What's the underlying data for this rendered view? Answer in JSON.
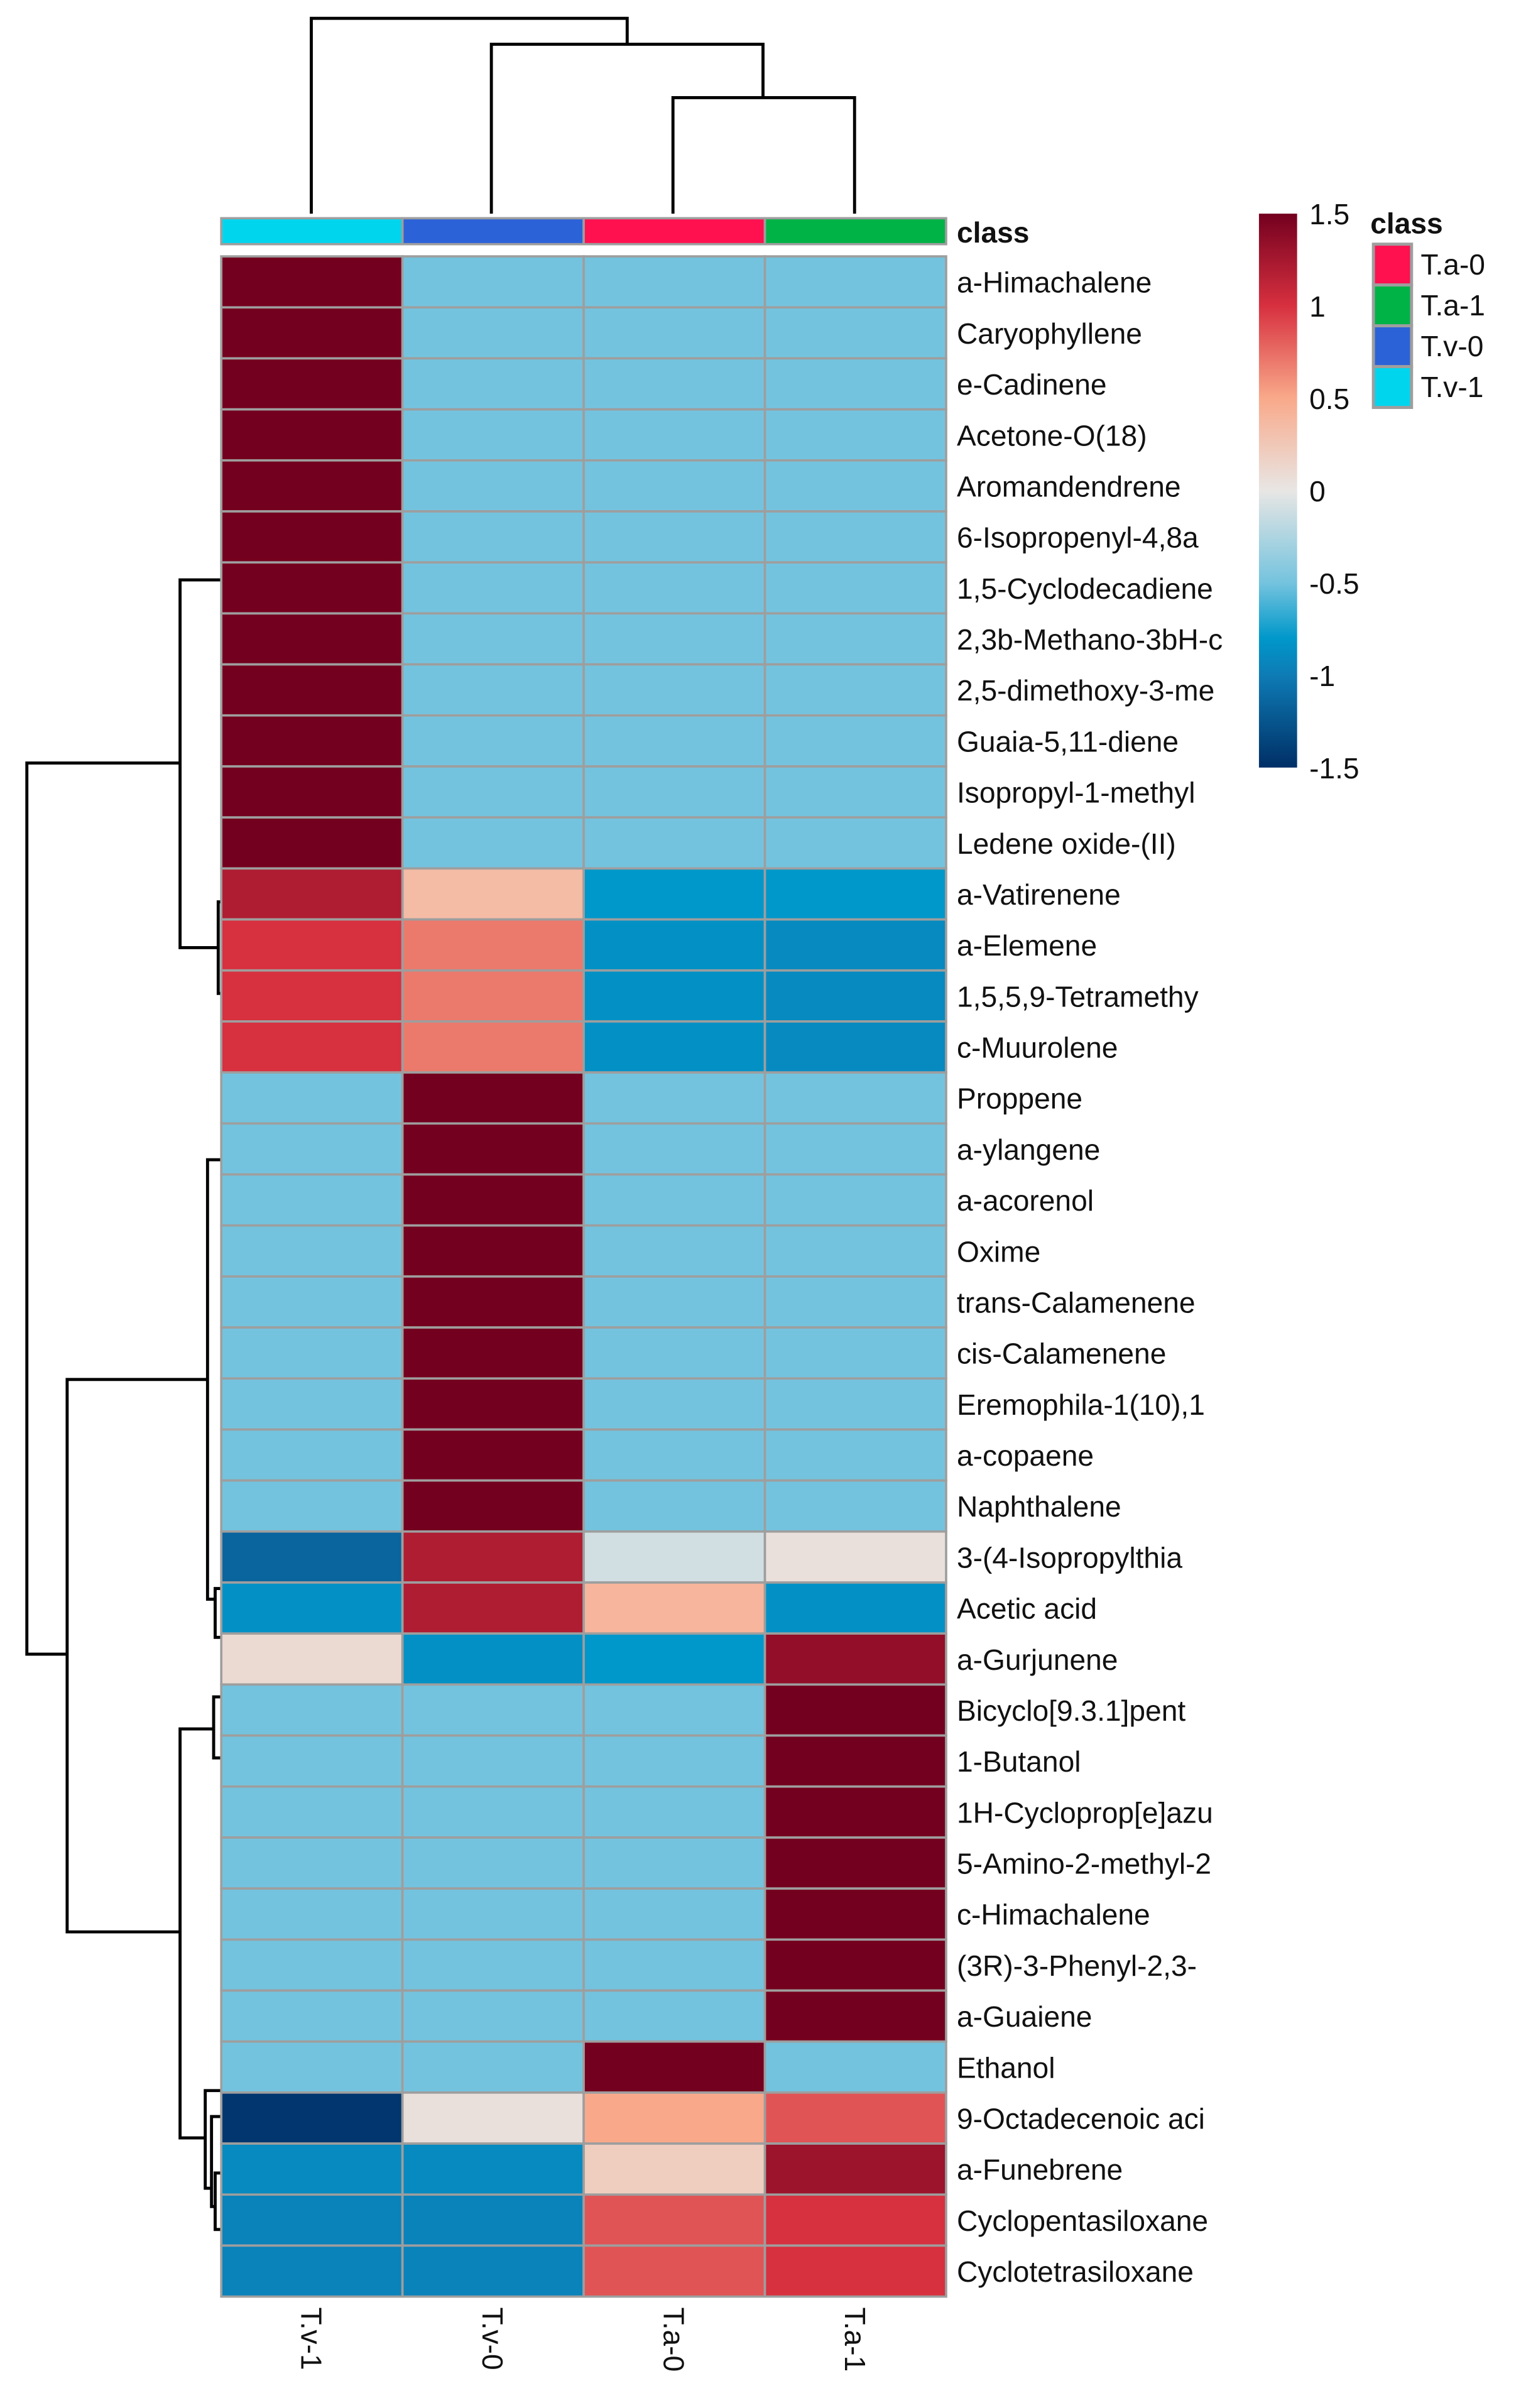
{
  "chart_data": {
    "type": "heatmap",
    "title": "",
    "columns": [
      "T.v-1",
      "T.v-0",
      "T.a-0",
      "T.a-1"
    ],
    "column_classes": [
      "T.v-1",
      "T.v-0",
      "T.a-0",
      "T.a-1"
    ],
    "class_annotation_label": "class",
    "rows": [
      "a-Himachalene",
      "Caryophyllene",
      "e-Cadinene",
      "Acetone-O(18)",
      "Aromandendrene",
      "6-Isopropenyl-4,8a",
      "1,5-Cyclodecadiene",
      "2,3b-Methano-3bH-c",
      "2,5-dimethoxy-3-me",
      "Guaia-5,11-diene",
      "Isopropyl-1-methyl",
      "Ledene oxide-(II)",
      "a-Vatirenene",
      "a-Elemene",
      "1,5,5,9-Tetramethy",
      "c-Muurolene",
      "Proppene",
      "a-ylangene",
      "a-acorenol",
      "Oxime",
      "trans-Calamenene",
      "cis-Calamenene",
      "Eremophila-1(10),1",
      "a-copaene",
      "Naphthalene",
      "3-(4-Isopropylthia",
      "Acetic acid",
      "a-Gurjunene",
      "Bicyclo[9.3.1]pent",
      "1-Butanol",
      "1H-Cycloprop[e]azu",
      "5-Amino-2-methyl-2",
      "c-Himachalene",
      "(3R)-3-Phenyl-2,3-",
      "a-Guaiene",
      "Ethanol",
      "9-Octadecenoic aci",
      "a-Funebrene",
      "Cyclopentasiloxane",
      "Cyclotetrasiloxane"
    ],
    "values": [
      [
        1.5,
        -0.5,
        -0.5,
        -0.5
      ],
      [
        1.5,
        -0.5,
        -0.5,
        -0.5
      ],
      [
        1.5,
        -0.5,
        -0.5,
        -0.5
      ],
      [
        1.5,
        -0.5,
        -0.5,
        -0.5
      ],
      [
        1.5,
        -0.5,
        -0.5,
        -0.5
      ],
      [
        1.5,
        -0.5,
        -0.5,
        -0.5
      ],
      [
        1.5,
        -0.5,
        -0.5,
        -0.5
      ],
      [
        1.5,
        -0.5,
        -0.5,
        -0.5
      ],
      [
        1.5,
        -0.5,
        -0.5,
        -0.5
      ],
      [
        1.5,
        -0.5,
        -0.5,
        -0.5
      ],
      [
        1.5,
        -0.5,
        -0.5,
        -0.5
      ],
      [
        1.5,
        -0.5,
        -0.5,
        -0.5
      ],
      [
        1.2,
        0.35,
        -0.8,
        -0.8
      ],
      [
        1.0,
        0.7,
        -0.85,
        -0.9
      ],
      [
        1.0,
        0.7,
        -0.85,
        -0.9
      ],
      [
        1.0,
        0.7,
        -0.85,
        -0.9
      ],
      [
        -0.5,
        1.5,
        -0.5,
        -0.5
      ],
      [
        -0.5,
        1.5,
        -0.5,
        -0.5
      ],
      [
        -0.5,
        1.5,
        -0.5,
        -0.5
      ],
      [
        -0.5,
        1.5,
        -0.5,
        -0.5
      ],
      [
        -0.5,
        1.5,
        -0.5,
        -0.5
      ],
      [
        -0.5,
        1.5,
        -0.5,
        -0.5
      ],
      [
        -0.5,
        1.5,
        -0.5,
        -0.5
      ],
      [
        -0.5,
        1.5,
        -0.5,
        -0.5
      ],
      [
        -0.5,
        1.5,
        -0.5,
        -0.5
      ],
      [
        -1.15,
        1.2,
        -0.1,
        0.05
      ],
      [
        -0.85,
        1.2,
        0.4,
        -0.85
      ],
      [
        0.1,
        -0.85,
        -0.8,
        1.35
      ],
      [
        -0.5,
        -0.5,
        -0.5,
        1.5
      ],
      [
        -0.5,
        -0.5,
        -0.5,
        1.5
      ],
      [
        -0.5,
        -0.5,
        -0.5,
        1.5
      ],
      [
        -0.5,
        -0.5,
        -0.5,
        1.5
      ],
      [
        -0.5,
        -0.5,
        -0.5,
        1.5
      ],
      [
        -0.5,
        -0.5,
        -0.5,
        1.5
      ],
      [
        -0.5,
        -0.5,
        -0.5,
        1.5
      ],
      [
        -0.5,
        -0.5,
        1.5,
        -0.5
      ],
      [
        -1.45,
        0.05,
        0.5,
        0.85
      ],
      [
        -0.9,
        -0.9,
        0.2,
        1.3
      ],
      [
        -0.95,
        -0.95,
        0.85,
        1.0
      ],
      [
        -0.95,
        -0.95,
        0.85,
        1.0
      ]
    ],
    "color_scale": {
      "range": [
        -1.5,
        1.5
      ],
      "ticks": [
        "1.5",
        "1",
        "0.5",
        "0",
        "-0.5",
        "-1",
        "-1.5"
      ],
      "stops": [
        {
          "v": -1.5,
          "c": "#002f66"
        },
        {
          "v": -1.0,
          "c": "#0e7bb5"
        },
        {
          "v": -0.8,
          "c": "#0098ca"
        },
        {
          "v": -0.5,
          "c": "#74c3de"
        },
        {
          "v": 0,
          "c": "#e8e6e4"
        },
        {
          "v": 0.5,
          "c": "#f9a98a"
        },
        {
          "v": 1.0,
          "c": "#d7303f"
        },
        {
          "v": 1.5,
          "c": "#74001f"
        }
      ]
    },
    "legend": {
      "title": "class",
      "items": [
        {
          "label": "T.a-0",
          "color": "#ff1150"
        },
        {
          "label": "T.a-1",
          "color": "#00b347"
        },
        {
          "label": "T.v-0",
          "color": "#2c62d8"
        },
        {
          "label": "T.v-1",
          "color": "#00d5ee"
        }
      ]
    },
    "class_colors": {
      "T.v-1": "#00d5ee",
      "T.v-0": "#2c62d8",
      "T.a-0": "#ff1150",
      "T.a-1": "#00b347"
    }
  }
}
